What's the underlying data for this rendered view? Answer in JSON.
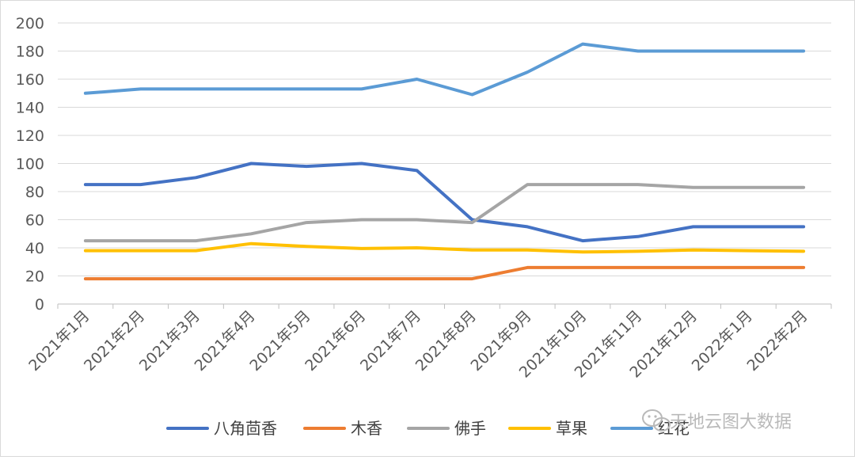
{
  "chart_data": {
    "type": "line",
    "x": [
      "2021年1月",
      "2021年2月",
      "2021年3月",
      "2021年4月",
      "2021年5月",
      "2021年6月",
      "2021年7月",
      "2021年8月",
      "2021年9月",
      "2021年10月",
      "2021年11月",
      "2021年12月",
      "2022年1月",
      "2022年2月"
    ],
    "ylim": [
      0,
      200
    ],
    "yticks": [
      0,
      20,
      40,
      60,
      80,
      100,
      120,
      140,
      160,
      180,
      200
    ],
    "grid": true,
    "legend_position": "bottom",
    "series": [
      {
        "name": "八角茴香",
        "color": "#4472c4",
        "values": [
          85,
          85,
          90,
          100,
          98,
          100,
          95,
          60,
          55,
          45,
          48,
          55,
          55,
          55
        ]
      },
      {
        "name": "木香",
        "color": "#ed7d31",
        "values": [
          18,
          18,
          18,
          18,
          18,
          18,
          18,
          18,
          26,
          26,
          26,
          26,
          26,
          26
        ]
      },
      {
        "name": "佛手",
        "color": "#a5a5a5",
        "values": [
          45,
          45,
          45,
          50,
          58,
          60,
          60,
          58,
          85,
          85,
          85,
          83,
          83,
          83
        ]
      },
      {
        "name": "草果",
        "color": "#ffc000",
        "values": [
          38,
          38,
          38,
          43,
          41,
          39.5,
          40,
          38.5,
          38.5,
          37,
          37.5,
          38.5,
          38,
          37.5
        ]
      },
      {
        "name": "红花",
        "color": "#5b9bd5",
        "values": [
          150,
          153,
          153,
          153,
          153,
          153,
          160,
          149,
          165,
          185,
          180,
          180,
          180,
          180
        ]
      }
    ]
  },
  "watermark": {
    "text": "天地云图大数据",
    "icon": "wechat-icon"
  }
}
